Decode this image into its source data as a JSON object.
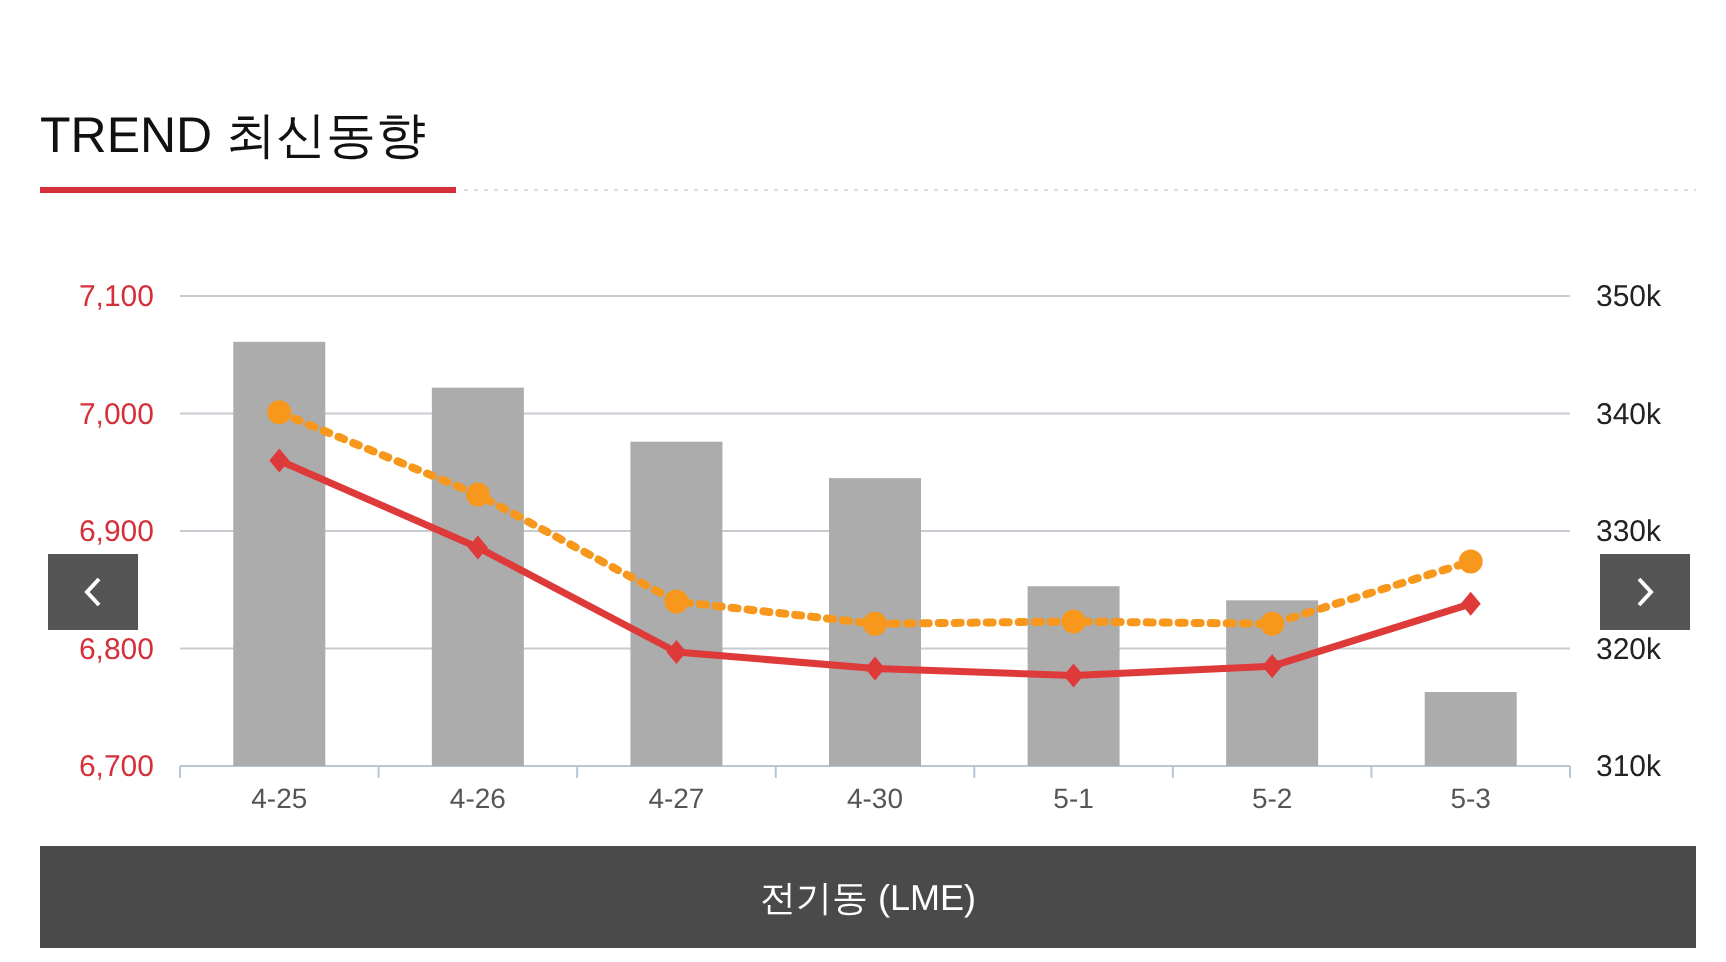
{
  "chart_data": {
    "type": "bar",
    "title": "TREND 최신동향",
    "categories": [
      "4-25",
      "4-26",
      "4-27",
      "4-30",
      "5-1",
      "5-2",
      "5-3"
    ],
    "series": [
      {
        "axis": "y2",
        "color": "#acacac",
        "values": [
          346100,
          342200,
          337600,
          334500,
          325300,
          324100,
          316300
        ]
      },
      {
        "type": "line",
        "color": "#de3a3a",
        "marker": "diamond",
        "line_style": "solid",
        "values": [
          6960,
          6886,
          6797,
          6783,
          6777,
          6785,
          6838
        ]
      },
      {
        "type": "line",
        "color": "#f7981d",
        "marker": "circle",
        "line_style": "dotted",
        "values": [
          7001,
          6931,
          6840,
          6821,
          6823,
          6821,
          6874
        ]
      }
    ],
    "ylim": [
      6700,
      7100
    ],
    "yticks": [
      {
        "value": 6700,
        "label": "6,700"
      },
      {
        "value": 6800,
        "label": "6,800"
      },
      {
        "value": 6900,
        "label": "6,900"
      },
      {
        "value": 7000,
        "label": "7,000"
      },
      {
        "value": 7100,
        "label": "7,100"
      }
    ],
    "y2lim": [
      310000,
      350000
    ],
    "y2ticks": [
      {
        "value": 310000,
        "label": "310k"
      },
      {
        "value": 320000,
        "label": "320k"
      },
      {
        "value": 330000,
        "label": "330k"
      },
      {
        "value": 340000,
        "label": "340k"
      },
      {
        "value": 350000,
        "label": "350k"
      }
    ],
    "grid": "y",
    "annotations": [
      "전기동 (LME)"
    ]
  }
}
